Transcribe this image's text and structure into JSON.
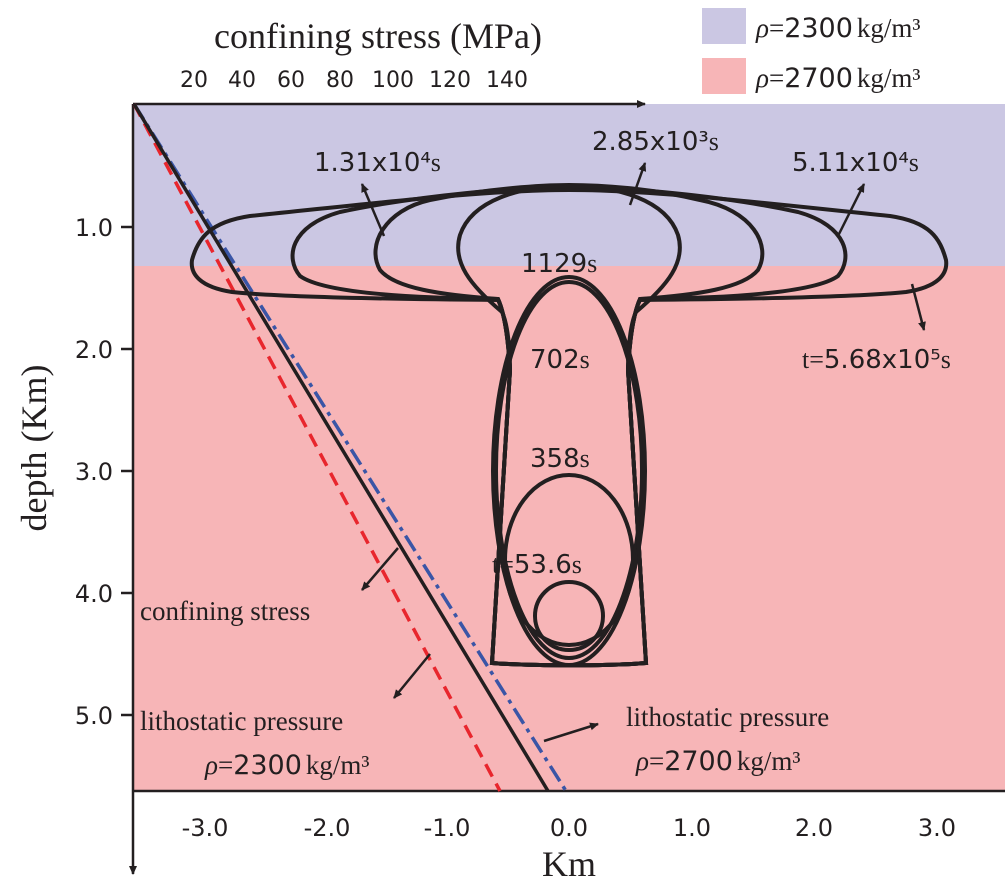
{
  "legend": [
    {
      "rho_symbol": "ρ",
      "eq": "=",
      "value": "2300",
      "unit": "kg/m³",
      "color": "#cbc7e3"
    },
    {
      "rho_symbol": "ρ",
      "eq": "=",
      "value": "2700",
      "unit": "kg/m³",
      "color": "#f7b5b7"
    }
  ],
  "top_axis": {
    "label": "confining stress (MPa)",
    "ticks": [
      "20",
      "40",
      "60",
      "80",
      "100",
      "120",
      "140"
    ]
  },
  "bottom_axis": {
    "label": "Km",
    "ticks": [
      "-3.0",
      "-2.0",
      "-1.0",
      "0.0",
      "1.0",
      "2.0",
      "3.0"
    ]
  },
  "left_axis": {
    "label": "depth (Km)",
    "ticks": [
      "1.0",
      "2.0",
      "3.0",
      "4.0",
      "5.0"
    ]
  },
  "time_labels": {
    "t0": {
      "prefix": "t=",
      "num": "53.6",
      "unit": "s"
    },
    "t1": {
      "num": "358",
      "unit": "s"
    },
    "t2": {
      "num": "702",
      "unit": "s"
    },
    "t3": {
      "num": "1129",
      "unit": "s"
    },
    "t4": {
      "num": "2.85x10³",
      "unit": "s"
    },
    "t5": {
      "num": "1.31x10⁴",
      "unit": "s"
    },
    "t6": {
      "num": "5.11x10⁴",
      "unit": "s"
    },
    "t7": {
      "prefix": "t=",
      "num": "5.68x10⁵",
      "unit": "s"
    }
  },
  "line_labels": {
    "confining": "confining stress",
    "litho_left": {
      "title": "lithostatic pressure",
      "rho": "ρ",
      "eq": "=",
      "value": "2300",
      "unit": "kg/m³"
    },
    "litho_right": {
      "title": "lithostatic pressure",
      "rho": "ρ",
      "eq": "=",
      "value": "2700",
      "unit": "kg/m³"
    }
  },
  "colors": {
    "layer_top": "#cbc7e3",
    "layer_bottom": "#f7b5b7",
    "litho_2300_line": "#e8262d",
    "litho_2700_line": "#3a55a6",
    "confining_line": "#231f20",
    "contour": "#231f20"
  }
}
